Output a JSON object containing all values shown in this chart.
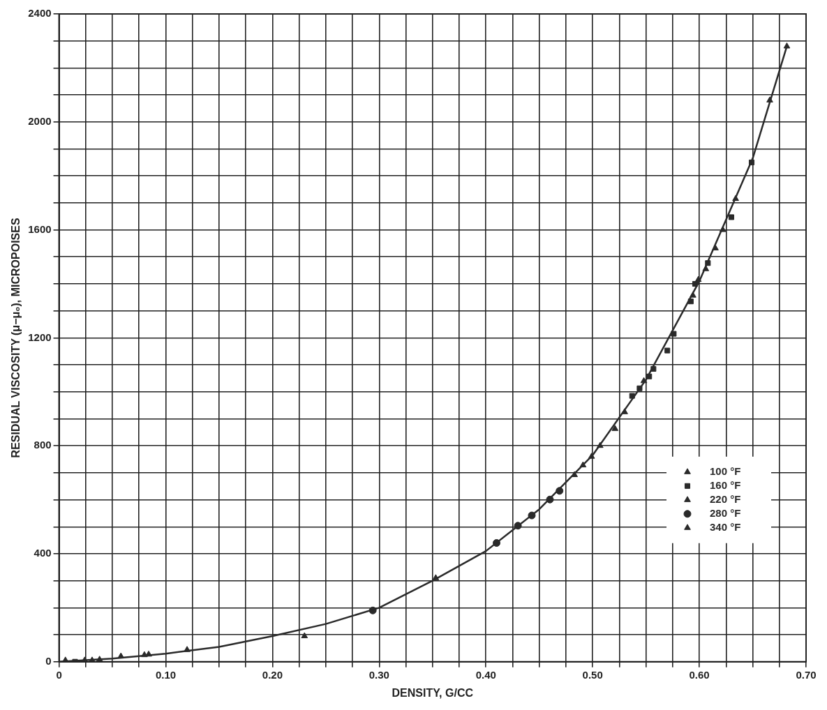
{
  "chart_data": {
    "type": "scatter",
    "xlabel": "DENSITY, G/CC",
    "ylabel": "RESIDUAL VISCOSITY (μ−μ₀), MICROPOISES",
    "xlim": [
      0,
      0.7
    ],
    "ylim": [
      0,
      2400
    ],
    "xticks": [
      0,
      {
        "value": 0.025,
        "label": null
      },
      {
        "value": 0.05,
        "label": null
      },
      {
        "value": 0.075,
        "label": null
      },
      {
        "value": 0.1,
        "label": "0.10"
      },
      {
        "value": 0.125,
        "label": null
      },
      {
        "value": 0.15,
        "label": null
      },
      {
        "value": 0.175,
        "label": null
      },
      {
        "value": 0.2,
        "label": "0.20"
      },
      {
        "value": 0.225,
        "label": null
      },
      {
        "value": 0.25,
        "label": null
      },
      {
        "value": 0.275,
        "label": null
      },
      {
        "value": 0.3,
        "label": "0.30"
      },
      {
        "value": 0.325,
        "label": null
      },
      {
        "value": 0.35,
        "label": null
      },
      {
        "value": 0.375,
        "label": null
      },
      {
        "value": 0.4,
        "label": "0.40"
      },
      {
        "value": 0.425,
        "label": null
      },
      {
        "value": 0.45,
        "label": null
      },
      {
        "value": 0.475,
        "label": null
      },
      {
        "value": 0.5,
        "label": "0.50"
      },
      {
        "value": 0.525,
        "label": null
      },
      {
        "value": 0.55,
        "label": null
      },
      {
        "value": 0.575,
        "label": null
      },
      {
        "value": 0.6,
        "label": "0.60"
      },
      {
        "value": 0.625,
        "label": null
      },
      {
        "value": 0.65,
        "label": null
      },
      {
        "value": 0.675,
        "label": null
      },
      {
        "value": 0.7,
        "label": "0.70"
      }
    ],
    "yticks": [
      0,
      {
        "value": 100,
        "label": null
      },
      {
        "value": 200,
        "label": null
      },
      {
        "value": 300,
        "label": null
      },
      400,
      {
        "value": 500,
        "label": null
      },
      {
        "value": 600,
        "label": null
      },
      {
        "value": 700,
        "label": null
      },
      800,
      {
        "value": 900,
        "label": null
      },
      {
        "value": 1000,
        "label": null
      },
      {
        "value": 1100,
        "label": null
      },
      1200,
      {
        "value": 1300,
        "label": null
      },
      {
        "value": 1400,
        "label": null
      },
      {
        "value": 1500,
        "label": null
      },
      1600,
      {
        "value": 1700,
        "label": null
      },
      {
        "value": 1800,
        "label": null
      },
      {
        "value": 1900,
        "label": null
      },
      2000,
      {
        "value": 2100,
        "label": null
      },
      {
        "value": 2200,
        "label": null
      },
      {
        "value": 2300,
        "label": null
      },
      2400
    ],
    "grid": true,
    "legend": "bottom right",
    "series": [
      {
        "type": "line",
        "color": "#2a2a2a",
        "marker": "none",
        "line_style": "solid",
        "x": [
          0,
          0.05,
          0.1,
          0.15,
          0.2,
          0.25,
          0.3,
          0.35,
          0.4,
          0.45,
          0.5,
          0.55,
          0.6,
          0.65,
          0.682
        ],
        "values": [
          0,
          12,
          30,
          55,
          95,
          140,
          200,
          300,
          410,
          565,
          765,
          1045,
          1410,
          1865,
          2280
        ]
      },
      {
        "name": "100 °F",
        "color": "#2a2a2a",
        "marker": "triangle",
        "x": [
          0.682,
          0.666,
          0.634,
          0.622,
          0.615,
          0.606,
          0.599,
          0.594,
          0.548,
          0.53
        ],
        "values": [
          2280,
          2080,
          1715,
          1600,
          1532,
          1455,
          1415,
          1357,
          1040,
          925
        ]
      },
      {
        "name": "160 °F",
        "color": "#2a2a2a",
        "marker": "square",
        "x": [
          0.649,
          0.63,
          0.608,
          0.596,
          0.592,
          0.576,
          0.57,
          0.557,
          0.553,
          0.544,
          0.537,
          0.015
        ],
        "values": [
          1850,
          1647,
          1477,
          1400,
          1335,
          1215,
          1153,
          1085,
          1057,
          1013,
          985,
          0
        ]
      },
      {
        "name": "220 °F",
        "color": "#2a2a2a",
        "marker": "triangle",
        "x": [
          0.483,
          0.491,
          0.499,
          0.507,
          0.521,
          0.031
        ],
        "values": [
          692,
          728,
          760,
          800,
          863,
          5
        ]
      },
      {
        "name": "280 °F",
        "color": "#2a2a2a",
        "marker": "circle",
        "x": [
          0.294,
          0.41,
          0.43,
          0.443,
          0.46,
          0.469
        ],
        "values": [
          190,
          440,
          504,
          542,
          601,
          633
        ]
      },
      {
        "name": "340 °F",
        "color": "#2a2a2a",
        "marker": "triangle",
        "x": [
          0.006,
          0.024,
          0.038,
          0.058,
          0.08,
          0.084,
          0.12,
          0.23,
          0.353
        ],
        "values": [
          5,
          5,
          8,
          20,
          25,
          27,
          44,
          95,
          310
        ]
      }
    ]
  }
}
